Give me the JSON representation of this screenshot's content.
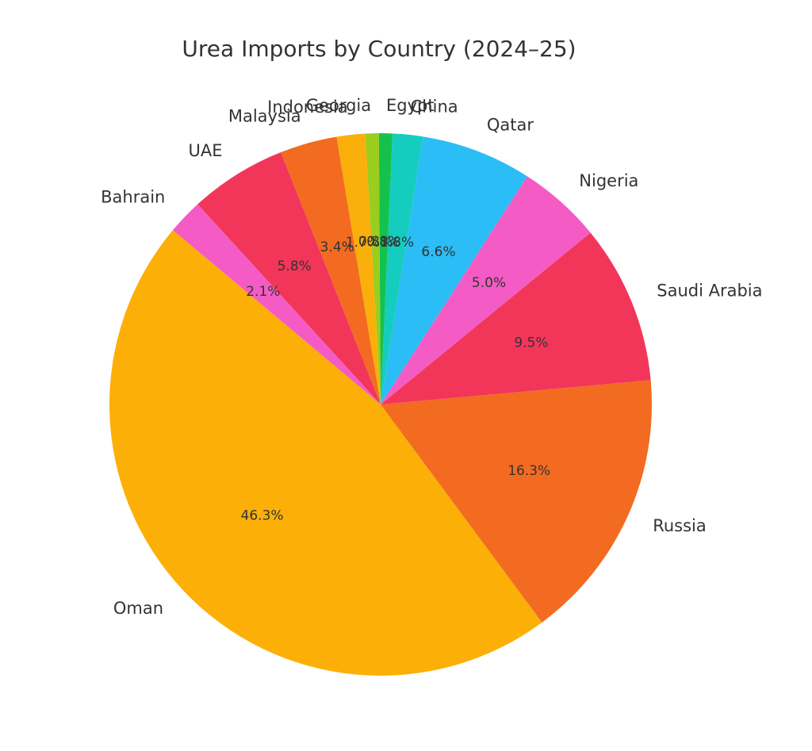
{
  "chart_data": {
    "type": "pie",
    "title": "Urea Imports by Country (2024–25)",
    "categories": [
      "Oman",
      "Russia",
      "Saudi Arabia",
      "Nigeria",
      "Qatar",
      "China",
      "Egypt",
      "Georgia",
      "Indonesia",
      "Malaysia",
      "UAE",
      "Bahrain"
    ],
    "values": [
      46.3,
      16.3,
      9.5,
      5.0,
      6.6,
      1.8,
      0.8,
      0.8,
      1.7,
      3.4,
      5.8,
      2.1
    ],
    "value_labels": [
      "46.3%",
      "16.3%",
      "9.5%",
      "5.0%",
      "6.6%",
      "1.8%",
      "0.8%",
      "0.8%",
      "1.7%",
      "3.4%",
      "5.8%",
      "2.1%"
    ],
    "colors": [
      "#fcaf07",
      "#f26b21",
      "#f2365a",
      "#f55bc4",
      "#2bbdf5",
      "#14cdbe",
      "#15c14d",
      "#9acd1e",
      "#fbaf0a",
      "#f26b21",
      "#f2365a",
      "#f55bc4"
    ],
    "start_angle": 140
  }
}
